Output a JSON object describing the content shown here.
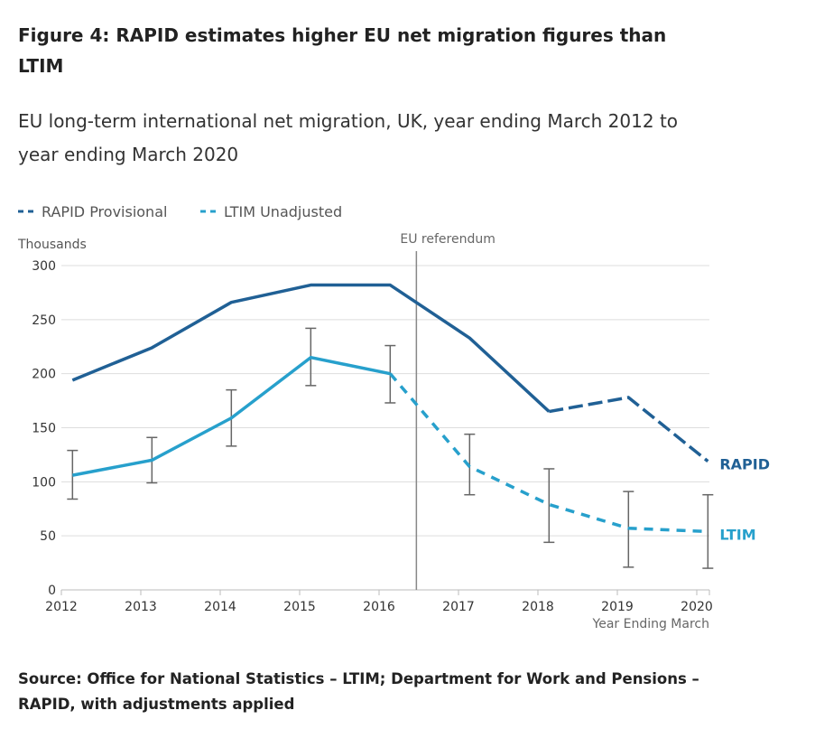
{
  "title": "Figure 4: RAPID estimates higher EU net migration figures than LTIM",
  "subtitle": "EU long-term international net migration, UK, year ending March 2012 to year ending March 2020",
  "source": "Source: Office for National Statistics – LTIM; Department for Work and Pensions – RAPID, with adjustments applied",
  "chart_data": {
    "type": "line",
    "ylabel": "Thousands",
    "xlabel": "Year Ending March",
    "ylim": [
      0,
      300
    ],
    "yticks": [
      0,
      50,
      100,
      150,
      200,
      250,
      300
    ],
    "xticks": [
      2012,
      2013,
      2014,
      2015,
      2016,
      2017,
      2018,
      2019,
      2020
    ],
    "grid": true,
    "legend_placement": "top-left",
    "legend": [
      "RAPID Provisional",
      "LTIM Unadjusted"
    ],
    "annotation": {
      "label": "EU referendum",
      "x": 2016.5
    },
    "x": [
      2012,
      2013,
      2014,
      2015,
      2016,
      2017,
      2018,
      2019,
      2020
    ],
    "series": [
      {
        "name": "RAPID",
        "color": "#206095",
        "values": [
          194,
          224,
          266,
          282,
          282,
          233,
          165,
          178,
          119
        ],
        "provisional_from": 2018
      },
      {
        "name": "LTIM",
        "color": "#27a0cc",
        "values": [
          106,
          120,
          159,
          215,
          200,
          114,
          79,
          57,
          54
        ],
        "provisional_from": 2016,
        "ci_lower": [
          84,
          99,
          133,
          189,
          173,
          88,
          44,
          21,
          20
        ],
        "ci_upper": [
          129,
          141,
          185,
          242,
          226,
          144,
          112,
          91,
          88
        ]
      }
    ]
  }
}
